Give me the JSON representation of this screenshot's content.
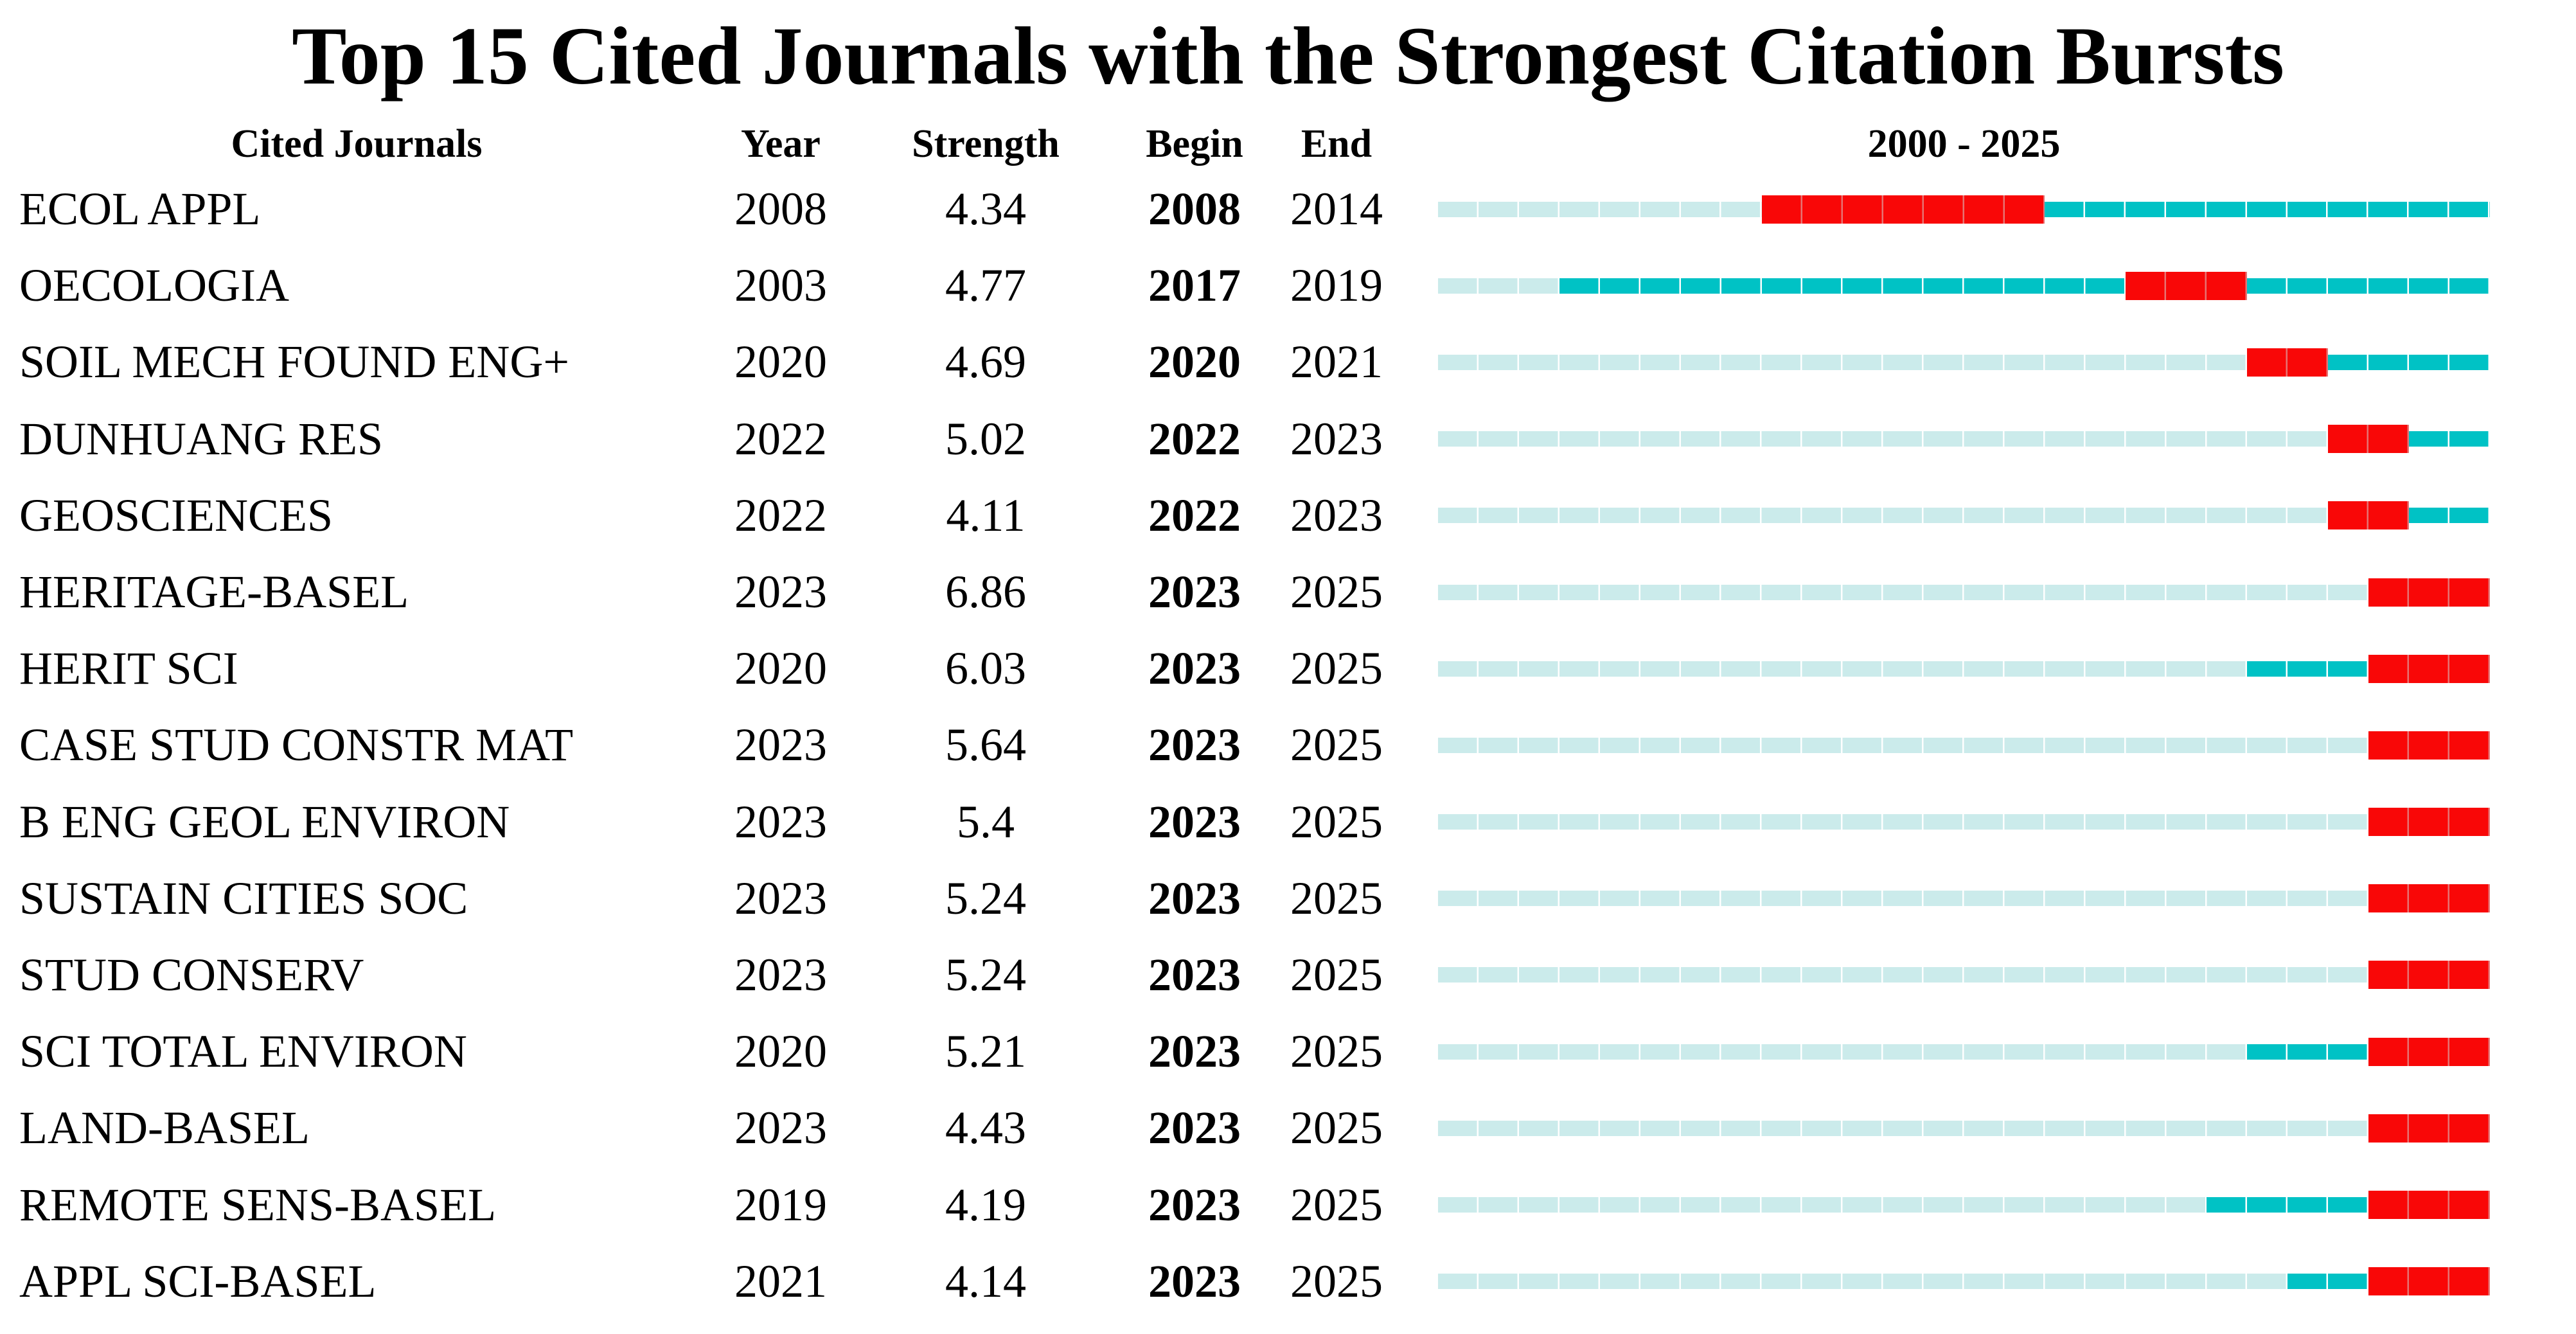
{
  "title": "Top 15 Cited Journals with the Strongest Citation Bursts",
  "chart_data": {
    "type": "table",
    "description": "Citation burst table with per-row year timelines from 2000 to 2025. Pale segment = years before first citation, dark teal = active non-burst years, red = burst period (Begin..End inclusive).",
    "columns": [
      "Cited Journals",
      "Year",
      "Strength",
      "Begin",
      "End"
    ],
    "timeline": {
      "header": "2000 - 2025",
      "start": 2000,
      "end": 2025
    },
    "colors": {
      "pre_burst": "#CBEBEB",
      "active": "#00C2C5",
      "burst": "#F90707"
    },
    "rows": [
      {
        "journal": "ECOL APPL",
        "year": 2008,
        "strength": "4.34",
        "begin": 2008,
        "end": 2014
      },
      {
        "journal": "OECOLOGIA",
        "year": 2003,
        "strength": "4.77",
        "begin": 2017,
        "end": 2019
      },
      {
        "journal": "SOIL MECH FOUND ENG+",
        "year": 2020,
        "strength": "4.69",
        "begin": 2020,
        "end": 2021
      },
      {
        "journal": "DUNHUANG RES",
        "year": 2022,
        "strength": "5.02",
        "begin": 2022,
        "end": 2023
      },
      {
        "journal": "GEOSCIENCES",
        "year": 2022,
        "strength": "4.11",
        "begin": 2022,
        "end": 2023
      },
      {
        "journal": "HERITAGE-BASEL",
        "year": 2023,
        "strength": "6.86",
        "begin": 2023,
        "end": 2025
      },
      {
        "journal": "HERIT SCI",
        "year": 2020,
        "strength": "6.03",
        "begin": 2023,
        "end": 2025
      },
      {
        "journal": "CASE STUD CONSTR MAT",
        "year": 2023,
        "strength": "5.64",
        "begin": 2023,
        "end": 2025
      },
      {
        "journal": "B ENG GEOL ENVIRON",
        "year": 2023,
        "strength": "5.4",
        "begin": 2023,
        "end": 2025
      },
      {
        "journal": "SUSTAIN CITIES SOC",
        "year": 2023,
        "strength": "5.24",
        "begin": 2023,
        "end": 2025
      },
      {
        "journal": "STUD CONSERV",
        "year": 2023,
        "strength": "5.24",
        "begin": 2023,
        "end": 2025
      },
      {
        "journal": "SCI TOTAL ENVIRON",
        "year": 2020,
        "strength": "5.21",
        "begin": 2023,
        "end": 2025
      },
      {
        "journal": "LAND-BASEL",
        "year": 2023,
        "strength": "4.43",
        "begin": 2023,
        "end": 2025
      },
      {
        "journal": "REMOTE SENS-BASEL",
        "year": 2019,
        "strength": "4.19",
        "begin": 2023,
        "end": 2025
      },
      {
        "journal": "APPL SCI-BASEL",
        "year": 2021,
        "strength": "4.14",
        "begin": 2023,
        "end": 2025
      }
    ]
  }
}
